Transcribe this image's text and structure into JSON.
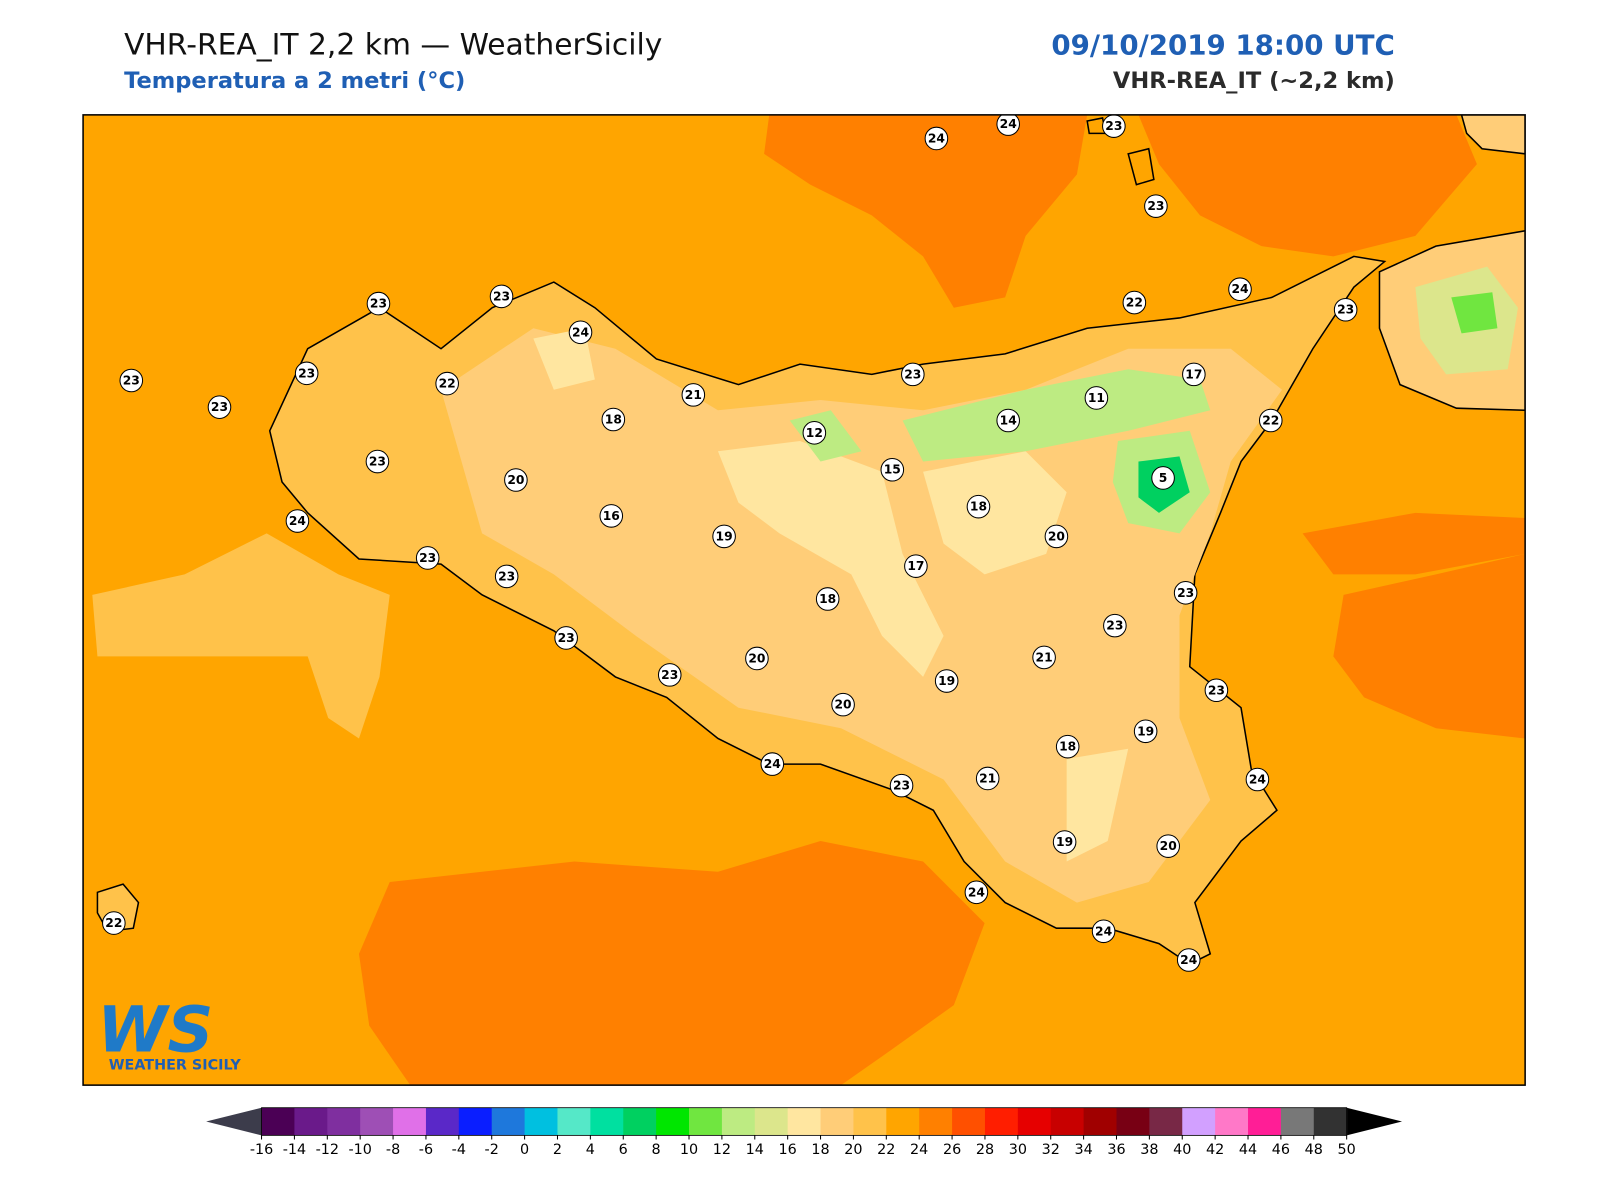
{
  "header": {
    "title": "VHR-REA_IT 2,2 km — WeatherSicily",
    "subtitle": "Temperatura a 2 metri (°C)",
    "datetime": "09/10/2019 18:00 UTC",
    "model": "VHR-REA_IT (~2,2 km)"
  },
  "stations": [
    24,
    24,
    23,
    23,
    24,
    22,
    23,
    23,
    23,
    24,
    23,
    22,
    23,
    23,
    21,
    18,
    23,
    17,
    11,
    14,
    22,
    12,
    23,
    15,
    5,
    20,
    18,
    24,
    16,
    19,
    20,
    23,
    17,
    23,
    23,
    18,
    23,
    23,
    20,
    21,
    23,
    19,
    23,
    20,
    19,
    18,
    24,
    21,
    23,
    24,
    19,
    20,
    24,
    24,
    24,
    22
  ],
  "colorbar": {
    "ticks": [
      -16,
      -14,
      -12,
      -10,
      -8,
      -6,
      -4,
      -2,
      0,
      2,
      4,
      6,
      8,
      10,
      12,
      14,
      16,
      18,
      20,
      22,
      24,
      26,
      28,
      30,
      32,
      34,
      36,
      38,
      40,
      42,
      44,
      46,
      48,
      50
    ],
    "colors": [
      "#4b0055",
      "#6a1a8a",
      "#7f2f9f",
      "#9e4fb5",
      "#e070e8",
      "#5a28c8",
      "#0a1eff",
      "#1e78dc",
      "#00c0e0",
      "#55e8c8",
      "#00e0a0",
      "#00d060",
      "#00e600",
      "#70e640",
      "#bdeb82",
      "#dce68c",
      "#ffe6a0",
      "#ffcd78",
      "#ffc24a",
      "#ffa500",
      "#ff8000",
      "#ff5000",
      "#ff1e00",
      "#e60000",
      "#c80000",
      "#a00000",
      "#780014",
      "#782846",
      "#d2a0ff",
      "#ff78c8",
      "#ff1e96",
      "#787878",
      "#323232"
    ],
    "under_color": "#3c3c4b",
    "over_color": "#000000"
  },
  "logo": {
    "mark": "WS",
    "text": "WEATHER SICILY"
  }
}
